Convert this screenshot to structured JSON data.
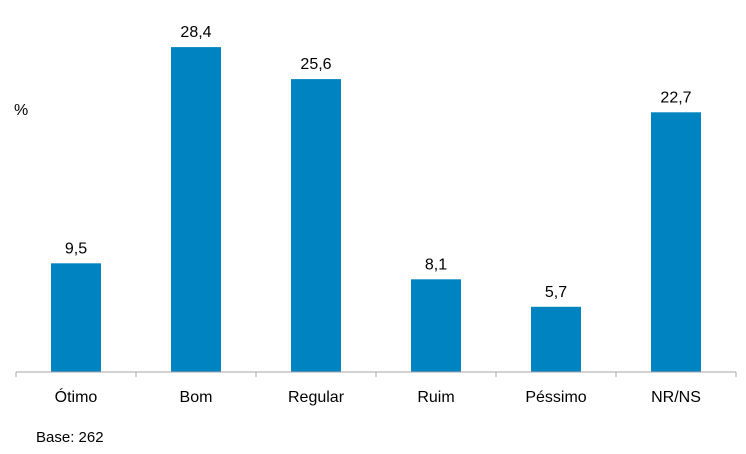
{
  "chart_data": {
    "type": "bar",
    "categories": [
      "Ótimo",
      "Bom",
      "Regular",
      "Ruim",
      "Péssimo",
      "NR/NS"
    ],
    "values": [
      9.5,
      28.4,
      25.6,
      8.1,
      5.7,
      22.7
    ],
    "value_labels": [
      "9,5",
      "28,4",
      "25,6",
      "8,1",
      "5,7",
      "22,7"
    ],
    "ylabel": "%",
    "ylim": [
      0,
      30
    ],
    "grid": false,
    "legend": "none",
    "bar_color": "#0083C1",
    "axis_color": "#A6A6A6",
    "text_color": "#000000"
  },
  "footnote": "Base: 262"
}
